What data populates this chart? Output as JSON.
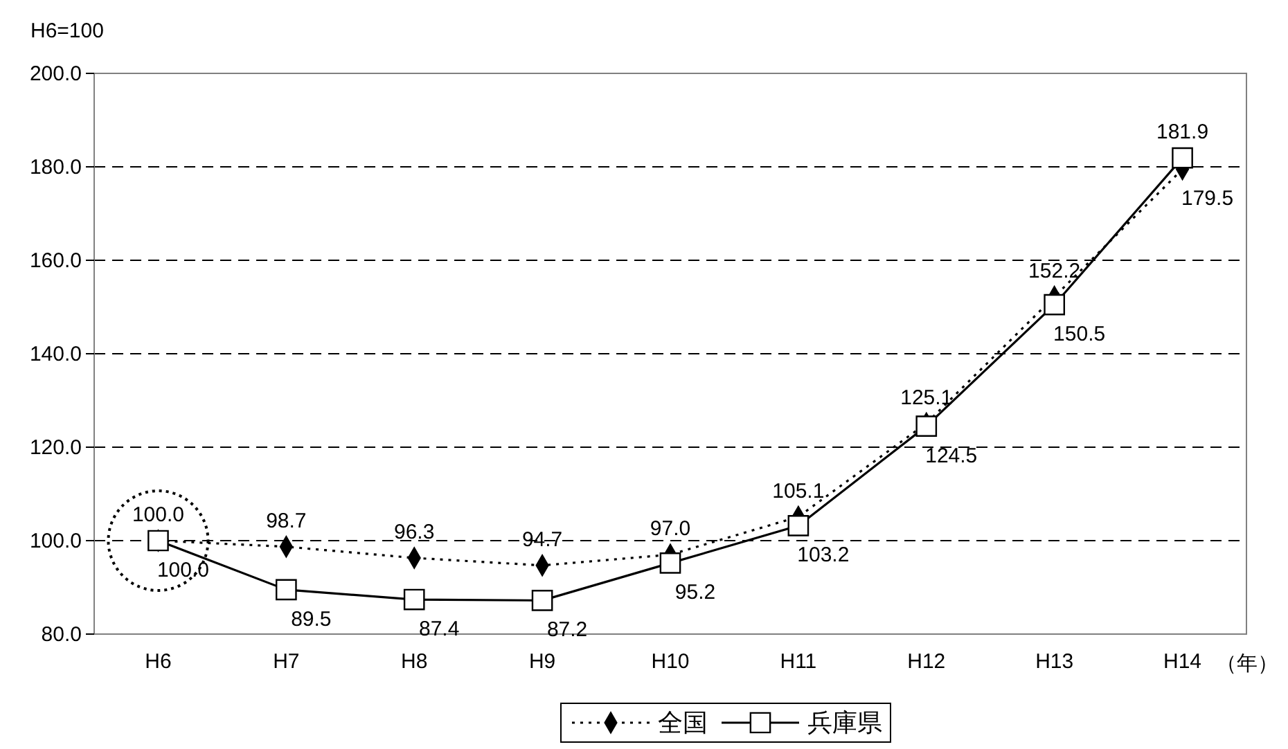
{
  "chart_data": {
    "type": "line",
    "subtitle": "H6=100",
    "xlabel": "（年）",
    "categories": [
      "H6",
      "H7",
      "H8",
      "H9",
      "H10",
      "H11",
      "H12",
      "H13",
      "H14"
    ],
    "series": [
      {
        "name": "全国",
        "color": "#000000",
        "marker": "diamond",
        "line_style": "dotted",
        "values": [
          100.0,
          98.7,
          96.3,
          94.7,
          97.0,
          105.1,
          125.1,
          152.2,
          179.5
        ],
        "value_labels": [
          "100.0",
          "98.7",
          "96.3",
          "94.7",
          "97.0",
          "105.1",
          "125.1",
          "152.2",
          "179.5"
        ]
      },
      {
        "name": "兵庫県",
        "color": "#000000",
        "marker": "square",
        "line_style": "solid",
        "values": [
          100.0,
          89.5,
          87.4,
          87.2,
          95.2,
          103.2,
          124.5,
          150.5,
          181.9
        ],
        "value_labels": [
          "100.0",
          "89.5",
          "87.4",
          "87.2",
          "95.2",
          "103.2",
          "124.5",
          "150.5",
          "181.9"
        ]
      }
    ],
    "ylim": [
      80,
      200
    ],
    "yticks": [
      {
        "value": 80,
        "label": "80.0"
      },
      {
        "value": 100,
        "label": "100.0"
      },
      {
        "value": 120,
        "label": "120.0"
      },
      {
        "value": 140,
        "label": "140.0"
      },
      {
        "value": 160,
        "label": "160.0"
      },
      {
        "value": 180,
        "label": "180.0"
      },
      {
        "value": 200,
        "label": "200.0"
      }
    ],
    "grid": "y",
    "legend": "bottom"
  }
}
